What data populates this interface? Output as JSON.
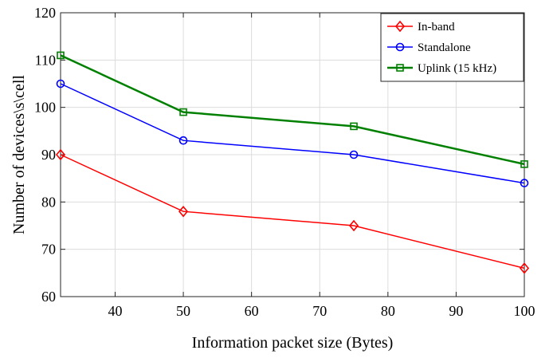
{
  "chart_data": {
    "type": "line",
    "title": "",
    "xlabel": "Information packet size (Bytes)",
    "ylabel": "Number of devices\\s\\cell",
    "xlim": [
      32,
      100
    ],
    "ylim": [
      60,
      120
    ],
    "xticks": [
      40,
      50,
      60,
      70,
      80,
      90,
      100
    ],
    "yticks": [
      60,
      70,
      80,
      90,
      100,
      110,
      120
    ],
    "grid": true,
    "legend_position": "top-right",
    "x": [
      32,
      50,
      75,
      100
    ],
    "series": [
      {
        "name": "In-band",
        "values": [
          90,
          78,
          75,
          66
        ],
        "color": "#ff0000",
        "marker": "diamond"
      },
      {
        "name": "Standalone",
        "values": [
          105,
          93,
          90,
          84
        ],
        "color": "#0000ff",
        "marker": "circle"
      },
      {
        "name": "Uplink (15 kHz)",
        "values": [
          111,
          99,
          96,
          88
        ],
        "color": "#008000",
        "marker": "square"
      }
    ]
  }
}
